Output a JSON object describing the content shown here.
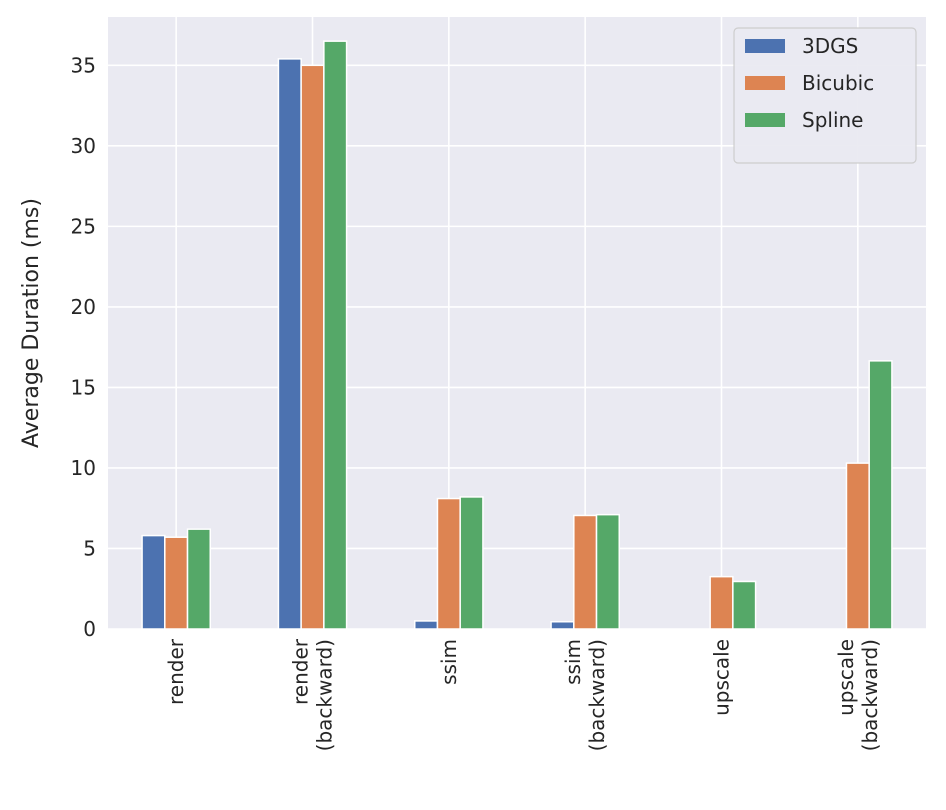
{
  "chart_data": {
    "type": "bar",
    "title": "",
    "xlabel": "",
    "ylabel": "Average Duration (ms)",
    "ylim": [
      0,
      38
    ],
    "yticks": [
      0,
      5,
      10,
      15,
      20,
      25,
      30,
      35
    ],
    "grid": true,
    "legend_position": "top-right",
    "categories": [
      [
        "render"
      ],
      [
        "render",
        "(backward)"
      ],
      [
        "ssim"
      ],
      [
        "ssim",
        "(backward)"
      ],
      [
        "upscale"
      ],
      [
        "upscale",
        "(backward)"
      ]
    ],
    "series": [
      {
        "name": "3DGS",
        "color": "#4c72b0",
        "values": [
          5.8,
          35.4,
          0.5,
          0.45,
          0,
          0
        ]
      },
      {
        "name": "Bicubic",
        "color": "#dd8452",
        "values": [
          5.7,
          35.0,
          8.1,
          7.05,
          3.25,
          10.3
        ]
      },
      {
        "name": "Spline",
        "color": "#55a868",
        "values": [
          6.2,
          36.5,
          8.2,
          7.1,
          2.95,
          16.65
        ]
      }
    ]
  }
}
